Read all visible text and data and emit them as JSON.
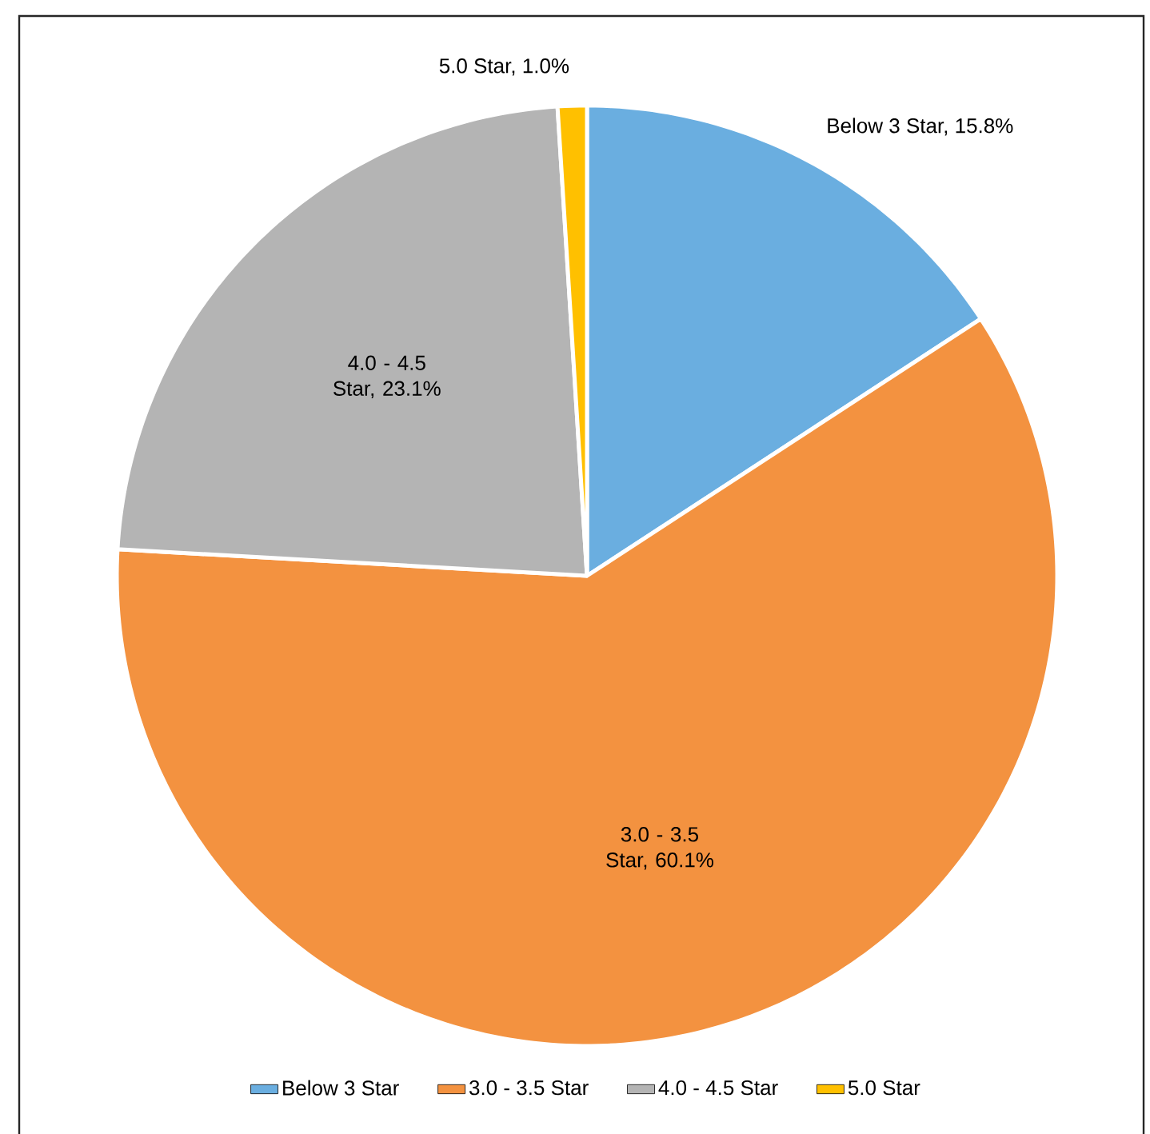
{
  "chart_data": {
    "type": "pie",
    "categories": [
      "Below 3 Star",
      "3.0 - 3.5 Star",
      "4.0 - 4.5 Star",
      "5.0 Star"
    ],
    "values": [
      15.8,
      60.1,
      23.1,
      1.0
    ],
    "value_labels": [
      "Below 3 Star, 15.8%",
      "3.0 - 3.5 Star, 60.1%",
      "4.0 - 4.5 Star, 23.1%",
      "5.0 Star, 1.0%"
    ],
    "colors": [
      "#6aaee0",
      "#f39240",
      "#b4b4b4",
      "#ffc000"
    ],
    "legend": "bottom"
  }
}
